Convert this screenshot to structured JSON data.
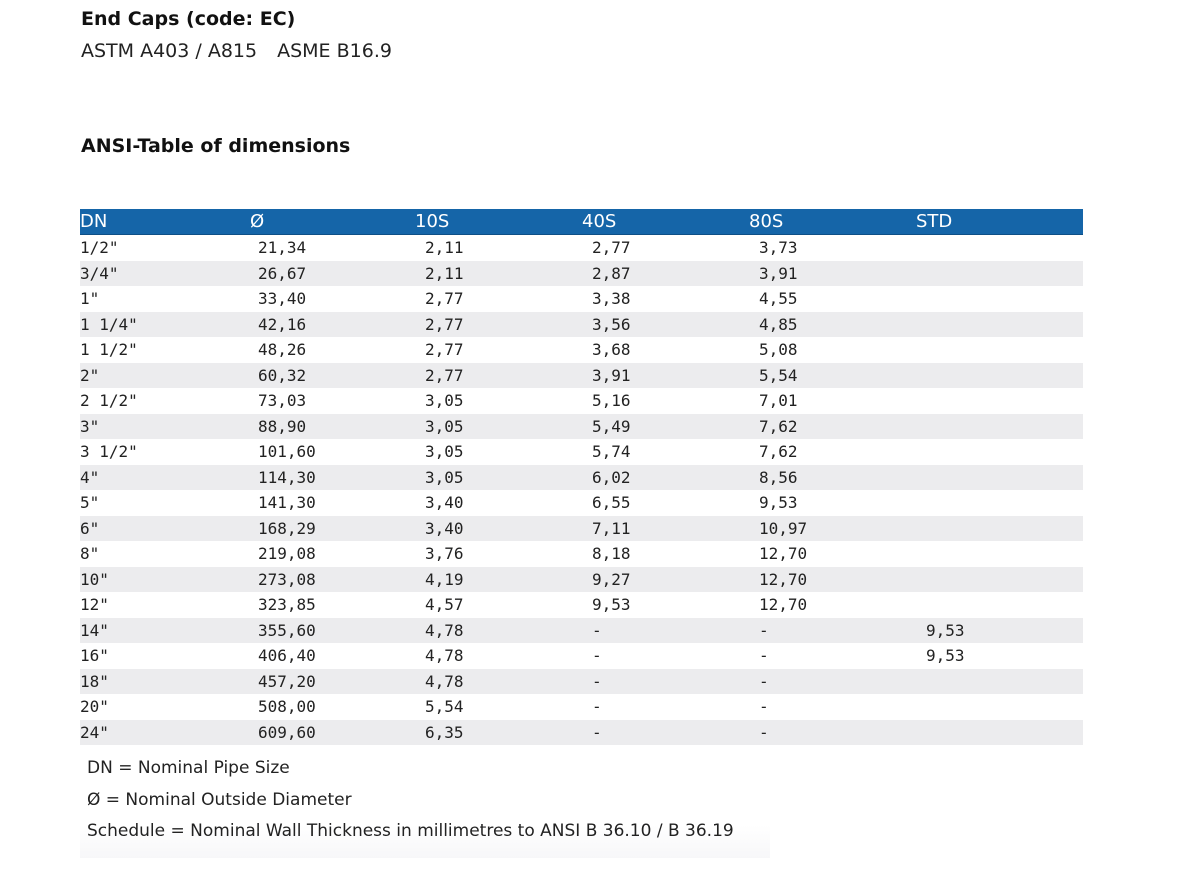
{
  "header": {
    "title": "End Caps (code: EC)",
    "standards": [
      "ASTM A403 / A815",
      "ASME B16.9"
    ]
  },
  "section_title": "ANSI-Table of dimensions",
  "table": {
    "header_color": "#1565a8",
    "stripe_color": "#ececee",
    "columns": [
      "DN",
      "Ø",
      "10S",
      "40S",
      "80S",
      "STD"
    ],
    "rows": [
      [
        "1/2\"",
        "21,34",
        "2,11",
        "2,77",
        "3,73",
        ""
      ],
      [
        "3/4\"",
        "26,67",
        "2,11",
        "2,87",
        "3,91",
        ""
      ],
      [
        "1\"",
        "33,40",
        "2,77",
        "3,38",
        "4,55",
        ""
      ],
      [
        "1 1/4\"",
        "42,16",
        "2,77",
        "3,56",
        "4,85",
        ""
      ],
      [
        "1 1/2\"",
        "48,26",
        "2,77",
        "3,68",
        "5,08",
        ""
      ],
      [
        "2\"",
        "60,32",
        "2,77",
        "3,91",
        "5,54",
        ""
      ],
      [
        "2 1/2\"",
        "73,03",
        "3,05",
        "5,16",
        "7,01",
        ""
      ],
      [
        "3\"",
        "88,90",
        "3,05",
        "5,49",
        "7,62",
        ""
      ],
      [
        "3 1/2\"",
        "101,60",
        "3,05",
        "5,74",
        "7,62",
        ""
      ],
      [
        "4\"",
        "114,30",
        "3,05",
        "6,02",
        "8,56",
        ""
      ],
      [
        "5\"",
        "141,30",
        "3,40",
        "6,55",
        "9,53",
        ""
      ],
      [
        "6\"",
        "168,29",
        "3,40",
        "7,11",
        "10,97",
        ""
      ],
      [
        "8\"",
        "219,08",
        "3,76",
        "8,18",
        "12,70",
        ""
      ],
      [
        "10\"",
        "273,08",
        "4,19",
        "9,27",
        "12,70",
        ""
      ],
      [
        "12\"",
        "323,85",
        "4,57",
        "9,53",
        "12,70",
        ""
      ],
      [
        "14\"",
        "355,60",
        "4,78",
        "-",
        "-",
        "9,53"
      ],
      [
        "16\"",
        "406,40",
        "4,78",
        "-",
        "-",
        "9,53"
      ],
      [
        "18\"",
        "457,20",
        "4,78",
        "-",
        "-",
        ""
      ],
      [
        "20\"",
        "508,00",
        "5,54",
        "-",
        "-",
        ""
      ],
      [
        "24\"",
        "609,60",
        "6,35",
        "-",
        "-",
        ""
      ]
    ]
  },
  "notes": [
    "DN = Nominal Pipe Size",
    "Ø = Nominal Outside Diameter",
    "Schedule = Nominal Wall Thickness in millimetres to ANSI B 36.10 / B 36.19"
  ]
}
